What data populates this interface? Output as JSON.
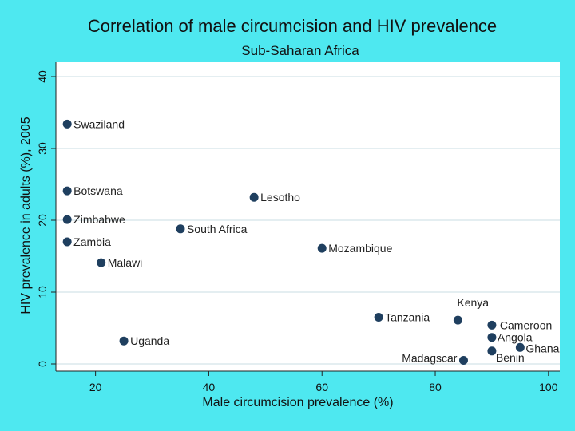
{
  "chart_data": {
    "type": "scatter",
    "title": "Correlation of male circumcision and HIV prevalence",
    "subtitle": "Sub-Saharan Africa",
    "xlabel": "Male circumcision prevalence (%)",
    "ylabel": "HIV prevalence in adults (%), 2005",
    "xlim": [
      13,
      102
    ],
    "ylim": [
      -1,
      42
    ],
    "xticks": [
      20,
      40,
      60,
      80,
      100
    ],
    "yticks": [
      0,
      10,
      20,
      30,
      40
    ],
    "grid": true,
    "marker_color": "#1f3f5f",
    "background_color": "#4ee8f0",
    "plot_background_color": "#ffffff",
    "grid_color": "#e4eef1",
    "points": [
      {
        "label": "Swaziland",
        "x": 15,
        "y": 33.4
      },
      {
        "label": "Botswana",
        "x": 15,
        "y": 24.1
      },
      {
        "label": "Zimbabwe",
        "x": 15,
        "y": 20.1
      },
      {
        "label": "Zambia",
        "x": 15,
        "y": 17
      },
      {
        "label": "Lesotho",
        "x": 48,
        "y": 23.2
      },
      {
        "label": "South Africa",
        "x": 35,
        "y": 18.8
      },
      {
        "label": "Mozambique",
        "x": 60,
        "y": 16.1
      },
      {
        "label": "Malawi",
        "x": 21,
        "y": 14.1
      },
      {
        "label": "Tanzania",
        "x": 70,
        "y": 6.5
      },
      {
        "label": "Kenya",
        "x": 84,
        "y": 6.1
      },
      {
        "label": "Cameroon",
        "x": 90,
        "y": 5.4
      },
      {
        "label": "Angola",
        "x": 90,
        "y": 3.7
      },
      {
        "label": "Ghana",
        "x": 95,
        "y": 2.3
      },
      {
        "label": "Benin",
        "x": 90,
        "y": 1.8
      },
      {
        "label": "Uganda",
        "x": 25,
        "y": 3.2
      },
      {
        "label": "Madagscar",
        "x": 85,
        "y": 0.5
      }
    ]
  }
}
